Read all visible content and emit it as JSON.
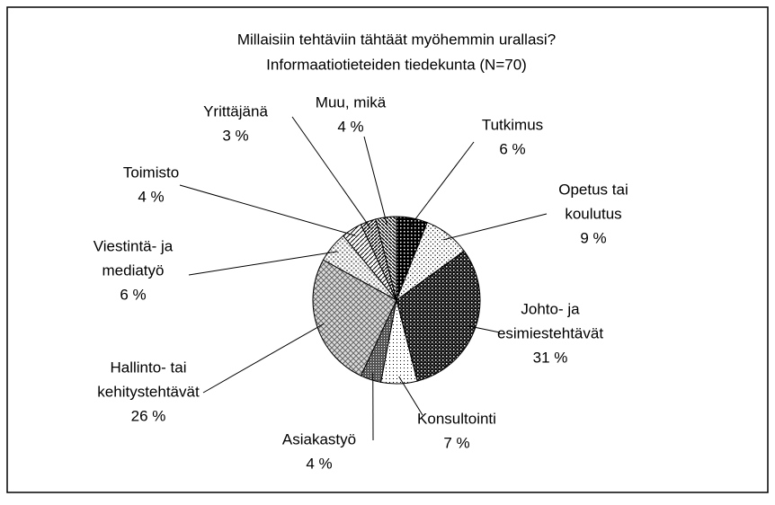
{
  "chart_data": {
    "type": "pie",
    "title": [
      "Millaisiin tehtäviin tähtäät myöhemmin urallasi?",
      "Informaatiotieteiden tiedekunta (N=70)"
    ],
    "categories": [
      [
        "Tutkimus"
      ],
      [
        "Opetus tai",
        "koulutus"
      ],
      [
        "Johto- ja",
        "esimiestehtävät"
      ],
      [
        "Konsultointi"
      ],
      [
        "Asiakastyö"
      ],
      [
        "Hallinto- tai",
        "kehitystehtävät"
      ],
      [
        "Viestintä- ja",
        "mediatyö"
      ],
      [
        "Toimisto"
      ],
      [
        "Yrittäjänä"
      ],
      [
        "Muu, mikä"
      ]
    ],
    "values": [
      6,
      9,
      31,
      7,
      4,
      26,
      6,
      4,
      3,
      4
    ],
    "value_labels": [
      "6 %",
      "9 %",
      "31 %",
      "7 %",
      "4 %",
      "26 %",
      "6 %",
      "4 %",
      "3 %",
      "4 %"
    ]
  }
}
